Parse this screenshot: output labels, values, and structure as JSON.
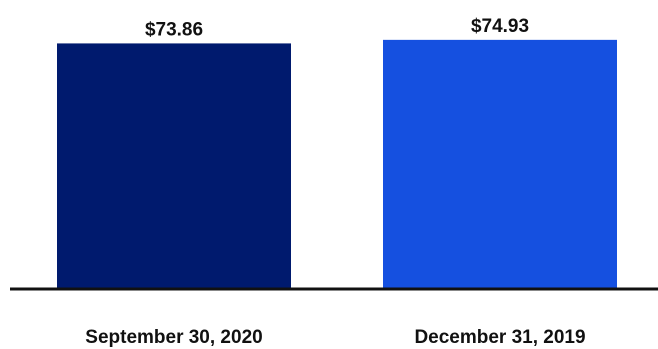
{
  "chart_data": {
    "type": "bar",
    "categories": [
      "September 30, 2020",
      "December 31, 2019"
    ],
    "values": [
      73.86,
      74.93
    ],
    "data_labels": [
      "$73.86",
      "$74.93"
    ],
    "colors": [
      "#001a6e",
      "#1550e0"
    ],
    "ylim": [
      0,
      80
    ],
    "grid": false,
    "legend": "none",
    "title": "",
    "xlabel": "",
    "ylabel": ""
  }
}
